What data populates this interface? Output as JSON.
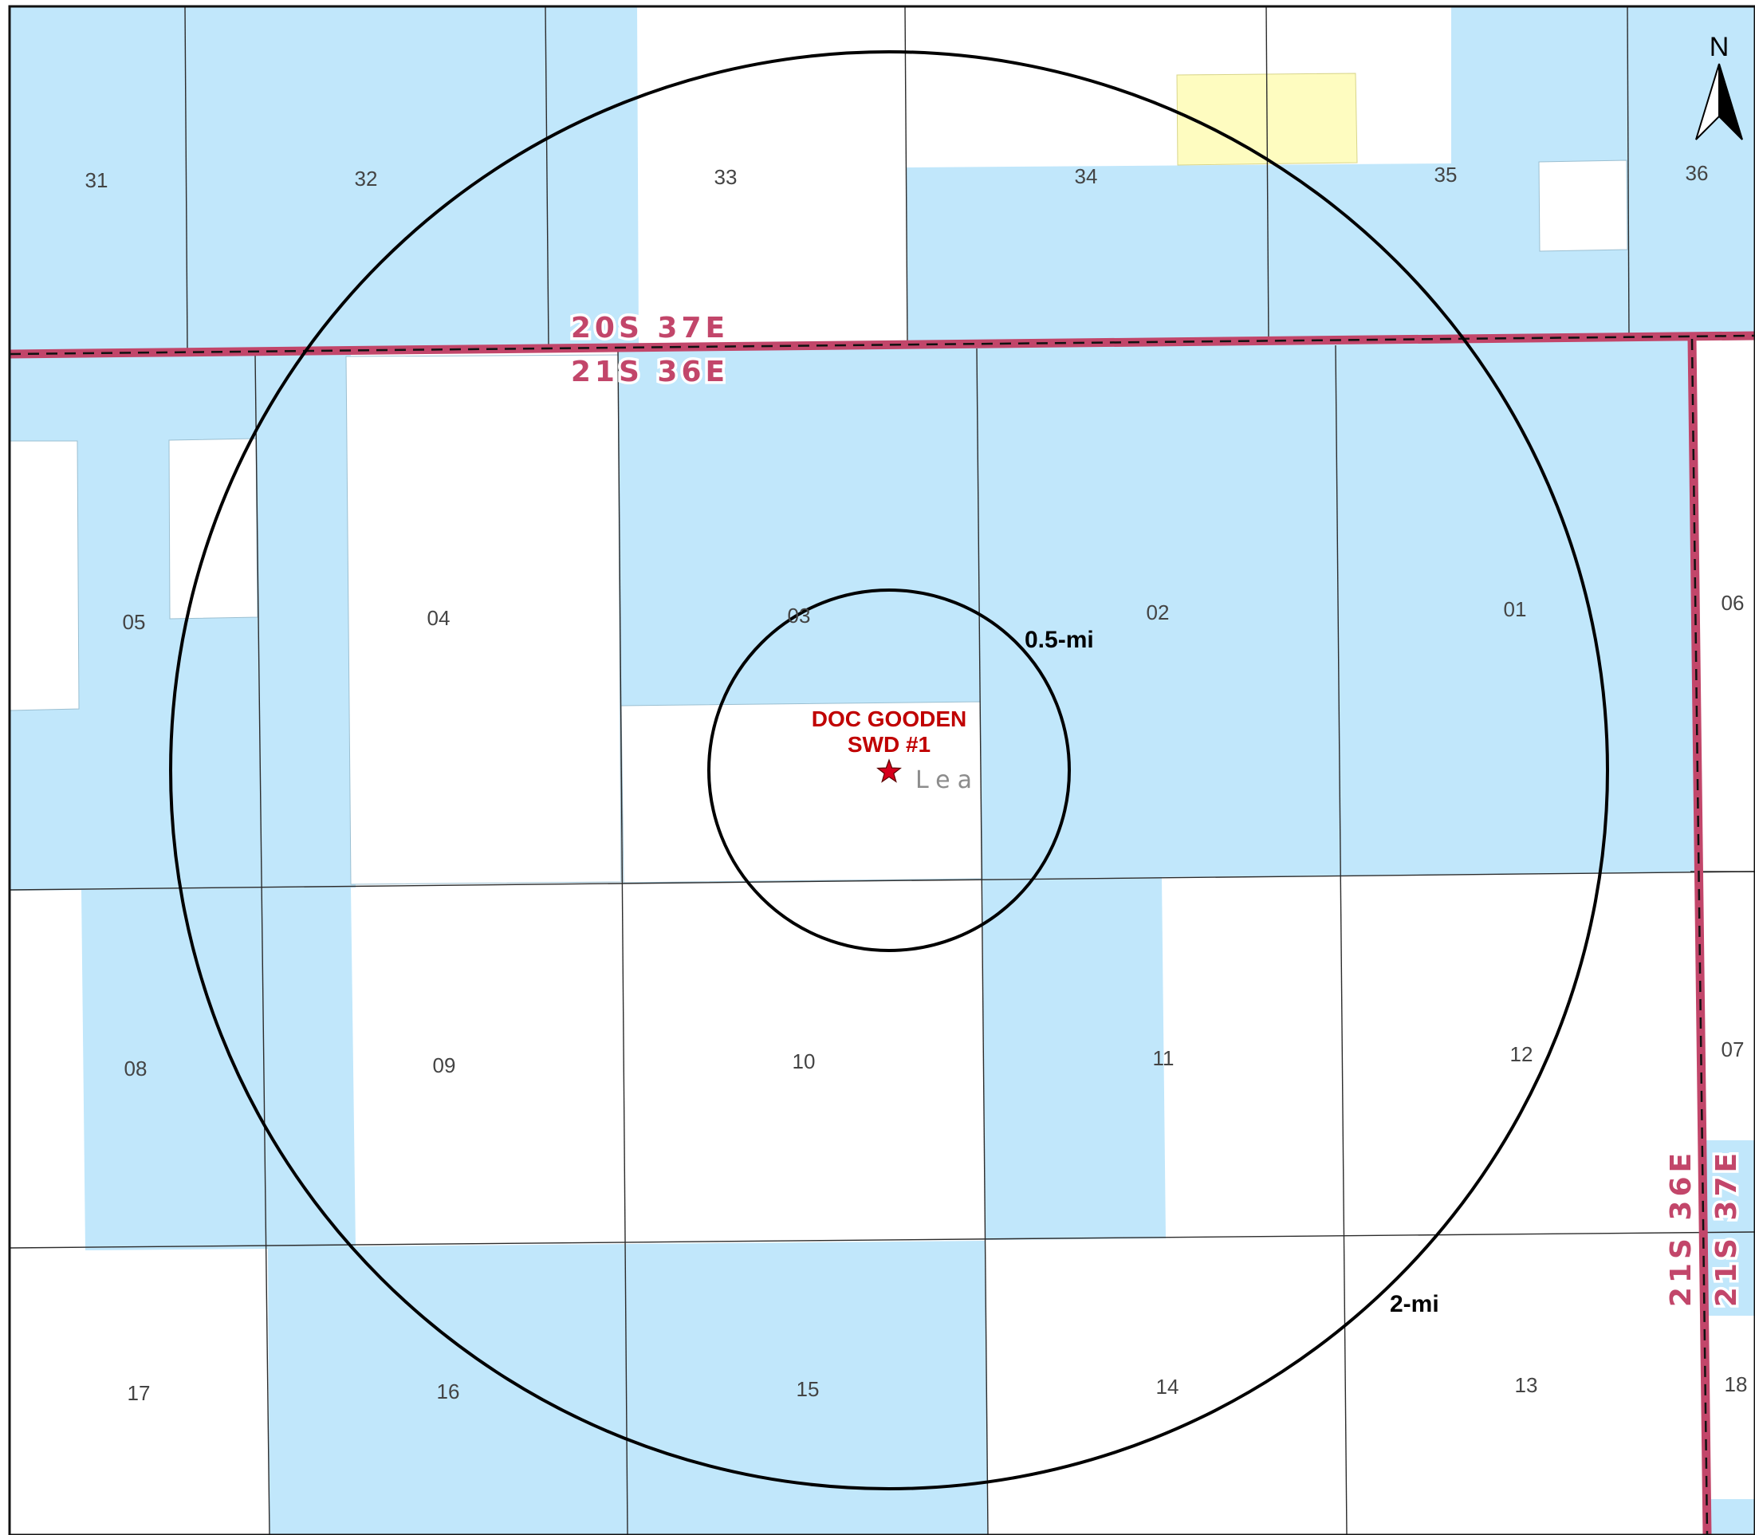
{
  "map": {
    "colors": {
      "state_land": "#c1e7fb",
      "private_land": "#ffffff",
      "blm_land": "#fefcc0",
      "township_line": "#c2466a",
      "section_line": "#333333",
      "well_marker": "#d6001c"
    },
    "sections_20S_37E": [
      "31",
      "32",
      "33",
      "34",
      "35",
      "36"
    ],
    "sections_21S_36E": [
      "05",
      "04",
      "03",
      "02",
      "01",
      "08",
      "09",
      "10",
      "11",
      "12",
      "17",
      "16",
      "15",
      "14",
      "13"
    ],
    "sections_21S_37E": [
      "06",
      "07",
      "18"
    ],
    "townships": {
      "north": "20S 37E",
      "south": "21S 36E",
      "west_vertical": "21S 36E",
      "east_vertical": "21S 37E"
    },
    "well": {
      "name_line1": "DOC GOODEN",
      "name_line2": "SWD #1",
      "symbol": "star-icon"
    },
    "county": "Lea",
    "rings": {
      "inner": "0.5-mi",
      "outer": "2-mi"
    },
    "north_arrow": {
      "letter": "N",
      "icon": "north-arrow-icon"
    }
  }
}
